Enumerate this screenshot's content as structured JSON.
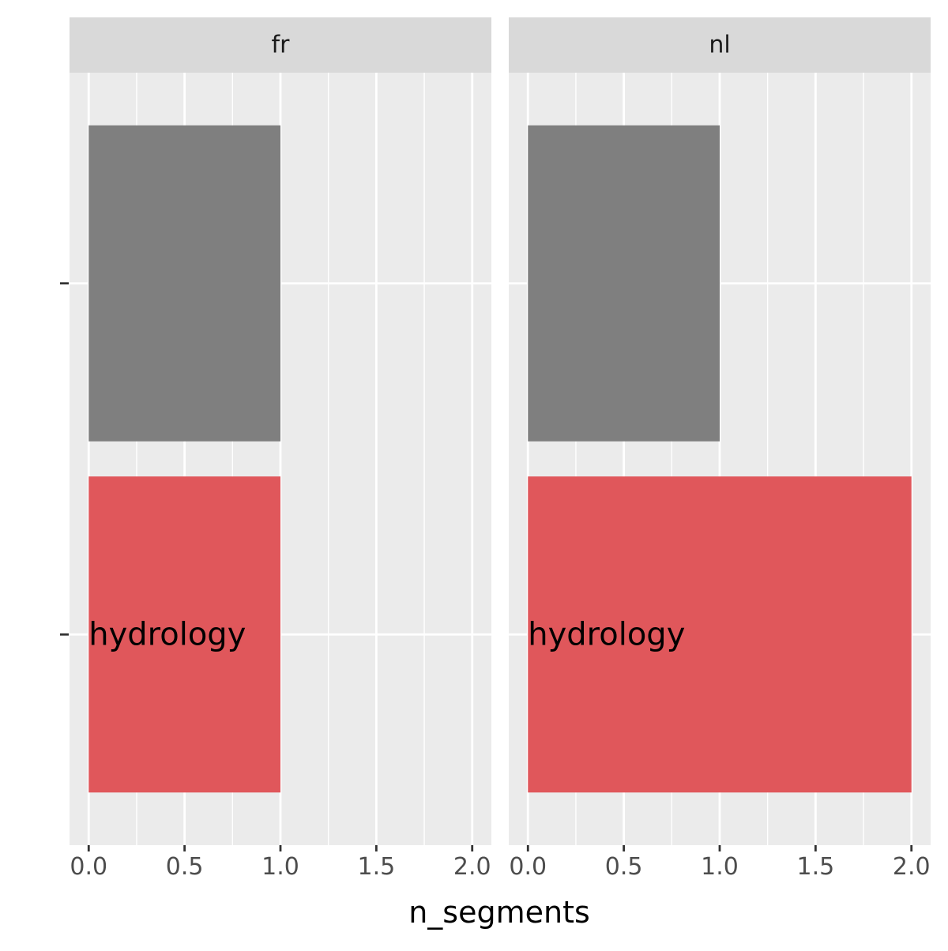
{
  "chart_data": {
    "type": "bar",
    "orientation": "horizontal",
    "facets": [
      "fr",
      "nl"
    ],
    "categories": [
      "",
      "hydrology"
    ],
    "series": [
      {
        "facet": "fr",
        "bars": [
          {
            "category": "",
            "label": "",
            "value": 1,
            "color": "#7f7f7f"
          },
          {
            "category": "hydrology",
            "label": "hydrology",
            "value": 1,
            "color": "#e0575b"
          }
        ]
      },
      {
        "facet": "nl",
        "bars": [
          {
            "category": "",
            "label": "",
            "value": 1,
            "color": "#7f7f7f"
          },
          {
            "category": "hydrology",
            "label": "hydrology",
            "value": 2,
            "color": "#e0575b"
          }
        ]
      }
    ],
    "xlabel": "n_segments",
    "ylabel": "",
    "xlim": [
      -0.1,
      2.1
    ],
    "xticks": [
      "0.0",
      "0.5",
      "1.0",
      "1.5",
      "2.0"
    ],
    "grid": true,
    "legend": "none",
    "colors": {
      "panel_background": "#ebebeb",
      "strip_background": "#d9d9d9",
      "gridline": "#ffffff"
    }
  }
}
